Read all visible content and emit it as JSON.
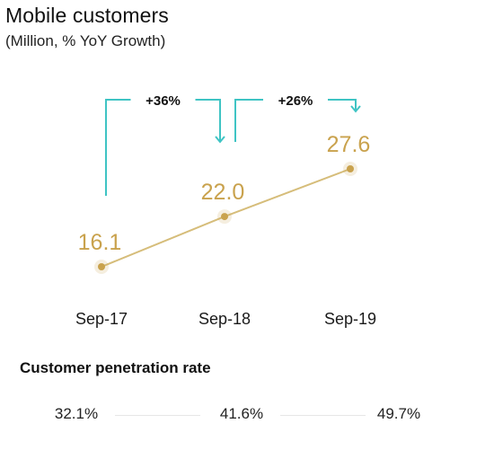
{
  "header": {
    "title": "Mobile customers",
    "subtitle": "(Million, % YoY Growth)"
  },
  "chart_data": {
    "type": "line",
    "title": "Mobile customers",
    "subtitle": "(Million, % YoY Growth)",
    "categories": [
      "Sep-17",
      "Sep-18",
      "Sep-19"
    ],
    "series": [
      {
        "values": [
          16.1,
          22.0,
          27.6
        ]
      }
    ],
    "value_labels": [
      "16.1",
      "22.0",
      "27.6"
    ],
    "growth_annotations": [
      {
        "label": "+36%",
        "from": "Sep-17",
        "to": "Sep-18"
      },
      {
        "label": "+26%",
        "from": "Sep-18",
        "to": "Sep-19"
      }
    ],
    "grid": false,
    "legend": "none"
  },
  "penetration": {
    "title": "Customer penetration rate",
    "values": [
      "32.1%",
      "41.6%",
      "49.7%"
    ]
  },
  "colors": {
    "line": "#d6bd7a",
    "marker": "#c9a24d",
    "value_label": "#c9a24d",
    "arrow": "#3fc4c4",
    "divider": "#e6e6e6"
  }
}
